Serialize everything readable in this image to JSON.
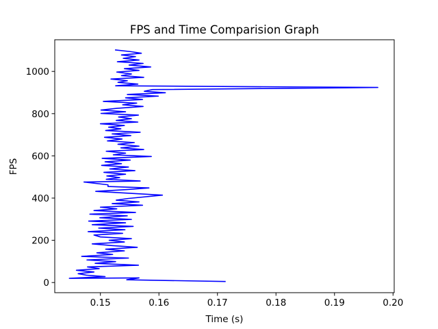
{
  "chart_data": {
    "type": "line",
    "title": "FPS and Time Comparision Graph",
    "xlabel": "Time (s)",
    "ylabel": "FPS",
    "xlim": [
      0.1422,
      0.2002
    ],
    "ylim": [
      -48,
      1150
    ],
    "x_ticks": [
      0.15,
      0.16,
      0.17,
      0.18,
      0.19,
      0.2
    ],
    "x_tick_labels": [
      "0.15",
      "0.16",
      "0.17",
      "0.18",
      "0.19",
      "0.20"
    ],
    "y_ticks": [
      0,
      200,
      400,
      600,
      800,
      1000
    ],
    "y_tick_labels": [
      "0",
      "200",
      "400",
      "600",
      "800",
      "1000"
    ],
    "grid": false,
    "legend": false,
    "series": [
      {
        "color": "#0000ff",
        "points": [
          [
            0.1714,
            5
          ],
          [
            0.1545,
            13
          ],
          [
            0.1566,
            22
          ],
          [
            0.1447,
            20
          ],
          [
            0.1508,
            28
          ],
          [
            0.1476,
            35
          ],
          [
            0.1462,
            42
          ],
          [
            0.1489,
            50
          ],
          [
            0.1459,
            58
          ],
          [
            0.1498,
            66
          ],
          [
            0.1478,
            74
          ],
          [
            0.1565,
            82
          ],
          [
            0.1491,
            91
          ],
          [
            0.1526,
            99
          ],
          [
            0.1477,
            107
          ],
          [
            0.1548,
            116
          ],
          [
            0.1468,
            124
          ],
          [
            0.1521,
            133
          ],
          [
            0.1494,
            141
          ],
          [
            0.1541,
            150
          ],
          [
            0.1509,
            158
          ],
          [
            0.1563,
            167
          ],
          [
            0.152,
            175
          ],
          [
            0.1486,
            183
          ],
          [
            0.1541,
            192
          ],
          [
            0.1515,
            200
          ],
          [
            0.1553,
            208
          ],
          [
            0.15,
            216
          ],
          [
            0.1489,
            225
          ],
          [
            0.1538,
            233
          ],
          [
            0.1479,
            241
          ],
          [
            0.1542,
            250
          ],
          [
            0.1497,
            258
          ],
          [
            0.1556,
            266
          ],
          [
            0.1486,
            274
          ],
          [
            0.1543,
            283
          ],
          [
            0.148,
            291
          ],
          [
            0.1553,
            299
          ],
          [
            0.1499,
            307
          ],
          [
            0.1546,
            316
          ],
          [
            0.1482,
            324
          ],
          [
            0.156,
            332
          ],
          [
            0.1489,
            341
          ],
          [
            0.1528,
            349
          ],
          [
            0.15,
            357
          ],
          [
            0.1572,
            366
          ],
          [
            0.152,
            374
          ],
          [
            0.1566,
            382
          ],
          [
            0.1527,
            390
          ],
          [
            0.1547,
            398
          ],
          [
            0.1606,
            414
          ],
          [
            0.1492,
            432
          ],
          [
            0.1543,
            440
          ],
          [
            0.1583,
            448
          ],
          [
            0.1513,
            455
          ],
          [
            0.1513,
            463
          ],
          [
            0.1472,
            476
          ],
          [
            0.1568,
            481
          ],
          [
            0.151,
            489
          ],
          [
            0.1533,
            497
          ],
          [
            0.1511,
            505
          ],
          [
            0.1543,
            513
          ],
          [
            0.1506,
            522
          ],
          [
            0.1559,
            530
          ],
          [
            0.1516,
            538
          ],
          [
            0.1548,
            547
          ],
          [
            0.1502,
            555
          ],
          [
            0.1536,
            563
          ],
          [
            0.1508,
            572
          ],
          [
            0.1551,
            580
          ],
          [
            0.1503,
            588
          ],
          [
            0.1587,
            597
          ],
          [
            0.1522,
            605
          ],
          [
            0.1543,
            613
          ],
          [
            0.151,
            622
          ],
          [
            0.1574,
            630
          ],
          [
            0.1535,
            638
          ],
          [
            0.1566,
            646
          ],
          [
            0.153,
            655
          ],
          [
            0.1558,
            663
          ],
          [
            0.1512,
            671
          ],
          [
            0.1537,
            680
          ],
          [
            0.1507,
            688
          ],
          [
            0.1552,
            696
          ],
          [
            0.152,
            704
          ],
          [
            0.1568,
            712
          ],
          [
            0.1509,
            720
          ],
          [
            0.1535,
            728
          ],
          [
            0.1514,
            736
          ],
          [
            0.1541,
            744
          ],
          [
            0.15,
            752
          ],
          [
            0.1564,
            760
          ],
          [
            0.1527,
            768
          ],
          [
            0.1553,
            776
          ],
          [
            0.1531,
            784
          ],
          [
            0.1565,
            793
          ],
          [
            0.1501,
            801
          ],
          [
            0.1543,
            809
          ],
          [
            0.1501,
            817
          ],
          [
            0.1528,
            825
          ],
          [
            0.1573,
            834
          ],
          [
            0.1538,
            842
          ],
          [
            0.1562,
            850
          ],
          [
            0.1505,
            858
          ],
          [
            0.1572,
            867
          ],
          [
            0.1543,
            875
          ],
          [
            0.1599,
            883
          ],
          [
            0.1546,
            891
          ],
          [
            0.1611,
            899
          ],
          [
            0.1575,
            906
          ],
          [
            0.1589,
            914
          ],
          [
            0.1974,
            924
          ],
          [
            0.1526,
            932
          ],
          [
            0.1564,
            940
          ],
          [
            0.153,
            948
          ],
          [
            0.1546,
            956
          ],
          [
            0.1518,
            964
          ],
          [
            0.1574,
            972
          ],
          [
            0.1536,
            980
          ],
          [
            0.1553,
            988
          ],
          [
            0.1528,
            997
          ],
          [
            0.1566,
            1005
          ],
          [
            0.1541,
            1013
          ],
          [
            0.1586,
            1021
          ],
          [
            0.1549,
            1030
          ],
          [
            0.1573,
            1038
          ],
          [
            0.1529,
            1046
          ],
          [
            0.1566,
            1054
          ],
          [
            0.1539,
            1062
          ],
          [
            0.156,
            1070
          ],
          [
            0.1536,
            1078
          ],
          [
            0.157,
            1086
          ],
          [
            0.1551,
            1094
          ],
          [
            0.1525,
            1102
          ]
        ]
      }
    ]
  }
}
